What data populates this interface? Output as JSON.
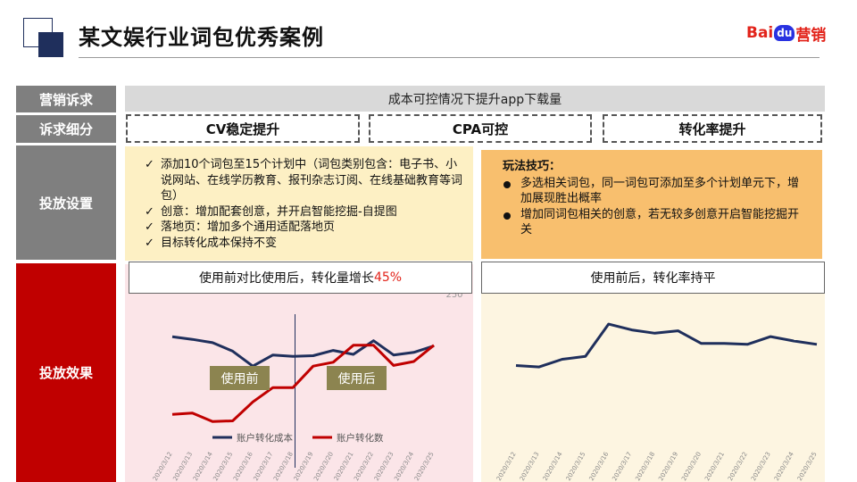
{
  "header": {
    "title": "某文娱行业词包优秀案例",
    "brand": {
      "part1": "Bai",
      "part2": "du",
      "part3": "营销"
    }
  },
  "rows": {
    "marketing_label": "营销诉求",
    "detail_label": "诉求细分",
    "setup_label": "投放设置",
    "effect_label": "投放效果"
  },
  "marketing_goal": "成本可控情况下提升app下载量",
  "sub_goals": [
    "CV稳定提升",
    "CPA可控",
    "转化率提升"
  ],
  "setup_left": {
    "items": [
      "添加10个词包至15个计划中（词包类别包含：电子书、小说网站、在线学历教育、报刊杂志订阅、在线基础教育等词包）",
      "创意：增加配套创意，并开启智能挖掘-自提图",
      "落地页：增加多个通用适配落地页",
      "目标转化成本保持不变"
    ]
  },
  "setup_right": {
    "heading": "玩法技巧：",
    "items": [
      "多选相关词包，同一词包可添加至多个计划单元下，增加展现胜出概率",
      "增加同词包相关的创意，若无较多创意开启智能挖掘开关"
    ]
  },
  "effect_left": {
    "caption_prefix": "使用前对比使用后，转化量增长",
    "caption_highlight": "45%",
    "tag_before": "使用前",
    "tag_after": "使用后"
  },
  "effect_right": {
    "caption": "使用前后，转化率持平"
  },
  "colors": {
    "navy": "#1f2f5c",
    "red": "#c00000",
    "accent": "#e2231a",
    "tag": "#8c8450"
  },
  "chart_data": [
    {
      "type": "line",
      "categories": [
        "2020/3/12",
        "2020/3/13",
        "2020/3/14",
        "2020/3/15",
        "2020/3/16",
        "2020/3/17",
        "2020/3/18",
        "2020/3/19",
        "2020/3/20",
        "2020/3/21",
        "2020/3/22",
        "2020/3/23",
        "2020/3/24",
        "2020/3/25"
      ],
      "series": [
        {
          "name": "账户转化成本",
          "values": [
            0.9,
            0.86,
            0.81,
            0.68,
            0.45,
            0.62,
            0.6,
            0.61,
            0.69,
            0.63,
            0.84,
            0.62,
            0.66,
            0.76
          ]
        },
        {
          "name": "账户转化数",
          "values": [
            -0.29,
            -0.27,
            -0.4,
            -0.39,
            -0.1,
            0.12,
            0.12,
            0.45,
            0.51,
            0.77,
            0.77,
            0.46,
            0.52,
            0.77
          ]
        }
      ],
      "y_tick_top": "250",
      "legend": "bottom",
      "divider_after": "2020/3/18"
    },
    {
      "type": "line",
      "categories": [
        "2020/3/12",
        "2020/3/13",
        "2020/3/14",
        "2020/3/15",
        "2020/3/16",
        "2020/3/17",
        "2020/3/18",
        "2020/3/19",
        "2020/3/20",
        "2020/3/21",
        "2020/3/22",
        "2020/3/23",
        "2020/3/24",
        "2020/3/25"
      ],
      "series": [
        {
          "values": [
            0.12,
            0.09,
            0.25,
            0.31,
            0.98,
            0.86,
            0.79,
            0.84,
            0.58,
            0.58,
            0.56,
            0.72,
            0.63,
            0.56
          ]
        }
      ]
    }
  ]
}
